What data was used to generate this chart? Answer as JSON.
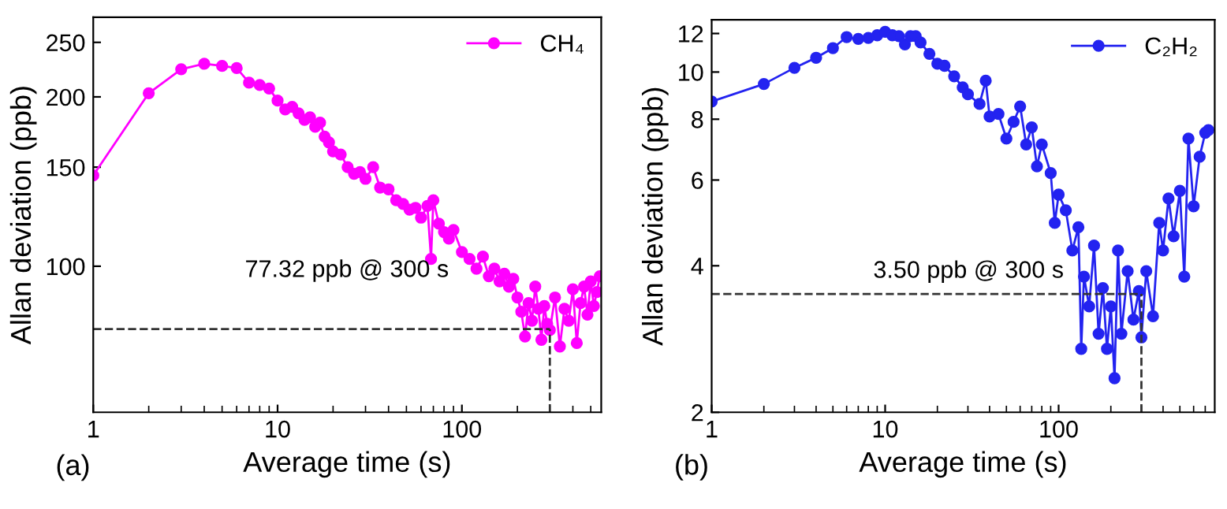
{
  "chart_data": [
    {
      "type": "line",
      "xlabel": "Average time (s)",
      "ylabel": "Allan deviation (ppb)",
      "log": "xy",
      "marker": "circle",
      "line_style": "solid",
      "legend": "top right",
      "grid": false,
      "xlim": [
        1,
        570
      ],
      "ylim": [
        55,
        277
      ],
      "xticks": [
        1,
        10,
        100
      ],
      "yticks": [
        100,
        150,
        200,
        250
      ],
      "series": [
        {
          "name": "CH₄",
          "color": "#ff00ff",
          "x": [
            1,
            2,
            3,
            4,
            5,
            6,
            7,
            8,
            9,
            10,
            11,
            12,
            13,
            14,
            15,
            16,
            17,
            18,
            19,
            20,
            22,
            24,
            26,
            28,
            30,
            33,
            36,
            40,
            44,
            48,
            52,
            56,
            60,
            65,
            68,
            70,
            75,
            80,
            85,
            90,
            100,
            110,
            120,
            130,
            140,
            150,
            160,
            170,
            180,
            190,
            200,
            210,
            220,
            230,
            240,
            250,
            260,
            270,
            280,
            290,
            300,
            320,
            340,
            360,
            380,
            400,
            420,
            440,
            460,
            480,
            500,
            520,
            540,
            560
          ],
          "values": [
            145,
            203,
            224,
            229,
            227,
            225,
            212,
            210,
            207,
            197,
            190,
            192,
            187,
            182,
            184,
            177,
            180,
            170,
            166,
            160,
            158,
            150,
            146,
            147,
            143,
            150,
            138,
            137,
            131,
            129,
            126,
            127,
            122,
            128,
            103,
            131,
            119,
            115,
            112,
            116,
            106,
            103,
            99,
            104,
            96,
            99,
            94,
            97,
            92,
            95,
            88,
            83,
            75,
            86,
            80,
            92,
            84,
            74,
            85,
            79,
            77,
            88,
            72,
            84,
            80,
            91,
            73,
            86,
            92,
            82,
            94,
            85,
            90,
            96
          ]
        }
      ],
      "ref_lines": [
        {
          "axis": "y",
          "value": 77.32,
          "color": "#333333",
          "line_style": "dashed"
        },
        {
          "axis": "x",
          "value": 300,
          "color": "#333333",
          "line_style": "dashed"
        }
      ],
      "annotations": [
        "77.32 ppb @ 300 s",
        "(a)"
      ]
    },
    {
      "type": "line",
      "xlabel": "Average time (s)",
      "ylabel": "Allan deviation (ppb)",
      "log": "xy",
      "marker": "circle",
      "line_style": "solid",
      "legend": "top right",
      "grid": false,
      "xlim": [
        1,
        794
      ],
      "ylim": [
        2,
        12.8
      ],
      "xticks": [
        1,
        10,
        100
      ],
      "yticks": [
        2,
        4,
        6,
        8,
        10,
        12
      ],
      "series": [
        {
          "name": "C₂H₂",
          "color": "#2323f0",
          "x": [
            1,
            2,
            3,
            4,
            5,
            6,
            7,
            8,
            9,
            10,
            11,
            12,
            13,
            14,
            15,
            16,
            18,
            20,
            22,
            25,
            28,
            30,
            35,
            38,
            40,
            45,
            50,
            55,
            60,
            65,
            70,
            75,
            80,
            90,
            95,
            100,
            110,
            120,
            130,
            135,
            140,
            150,
            160,
            170,
            180,
            190,
            200,
            210,
            220,
            230,
            250,
            270,
            290,
            300,
            320,
            350,
            380,
            400,
            430,
            460,
            500,
            530,
            560,
            600,
            650,
            700,
            730
          ],
          "values": [
            8.7,
            9.45,
            10.2,
            10.7,
            11.2,
            11.8,
            11.7,
            11.75,
            11.9,
            12.1,
            11.9,
            11.85,
            11.4,
            11.85,
            11.85,
            11.5,
            10.9,
            10.4,
            10.3,
            9.8,
            9.3,
            9.0,
            8.6,
            9.6,
            8.1,
            8.2,
            7.3,
            7.9,
            8.5,
            7.1,
            7.7,
            6.4,
            7.1,
            6.2,
            4.9,
            5.6,
            5.2,
            4.3,
            4.8,
            2.7,
            3.8,
            3.3,
            4.4,
            2.9,
            3.6,
            2.7,
            3.3,
            2.35,
            4.3,
            2.9,
            3.9,
            3.1,
            3.55,
            2.85,
            3.9,
            3.15,
            4.9,
            4.3,
            5.5,
            4.6,
            5.7,
            3.8,
            7.3,
            5.3,
            6.7,
            7.5,
            7.6
          ]
        }
      ],
      "ref_lines": [
        {
          "axis": "y",
          "value": 3.5,
          "color": "#333333",
          "line_style": "dashed"
        },
        {
          "axis": "x",
          "value": 300,
          "color": "#333333",
          "line_style": "dashed"
        }
      ],
      "annotations": [
        "3.50 ppb @ 300 s",
        "(b)"
      ]
    }
  ]
}
